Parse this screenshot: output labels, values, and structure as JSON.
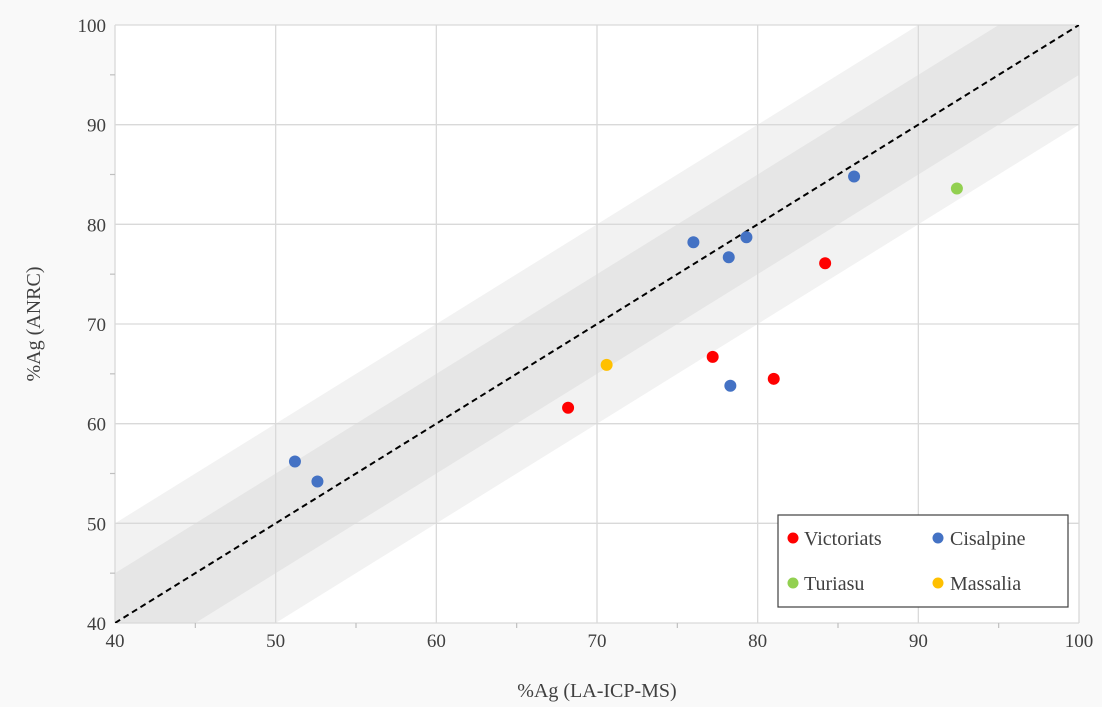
{
  "chart_data": {
    "type": "scatter",
    "xlabel": "%Ag (LA-ICP-MS)",
    "ylabel": "%Ag (ANRC)",
    "xlim": [
      40,
      100
    ],
    "ylim": [
      40,
      100
    ],
    "x_ticks": [
      "40",
      "50",
      "60",
      "70",
      "80",
      "90",
      "100"
    ],
    "y_ticks": [
      "40",
      "50",
      "60",
      "70",
      "80",
      "90",
      "100"
    ],
    "grid": true,
    "legend_position": "bottom-right",
    "reference_line": {
      "type": "identity",
      "style": "dashed",
      "color": "#000000"
    },
    "bands": [
      {
        "offset": 10,
        "color": "#f2f2f2"
      },
      {
        "offset": 5,
        "color": "#e6e6e6"
      }
    ],
    "series": [
      {
        "name": "Victoriats",
        "color": "#ff0000",
        "points": [
          [
            68.2,
            61.6
          ],
          [
            77.2,
            66.7
          ],
          [
            81.0,
            64.5
          ],
          [
            84.2,
            76.1
          ]
        ]
      },
      {
        "name": "Cisalpine",
        "color": "#4472c4",
        "points": [
          [
            51.2,
            56.2
          ],
          [
            52.6,
            54.2
          ],
          [
            76.0,
            78.2
          ],
          [
            78.2,
            76.7
          ],
          [
            78.3,
            63.8
          ],
          [
            79.3,
            78.7
          ],
          [
            86.0,
            84.8
          ]
        ]
      },
      {
        "name": "Turiasu",
        "color": "#92d050",
        "points": [
          [
            92.4,
            83.6
          ]
        ]
      },
      {
        "name": "Massalia",
        "color": "#ffc000",
        "points": [
          [
            70.6,
            65.9
          ]
        ]
      }
    ]
  }
}
